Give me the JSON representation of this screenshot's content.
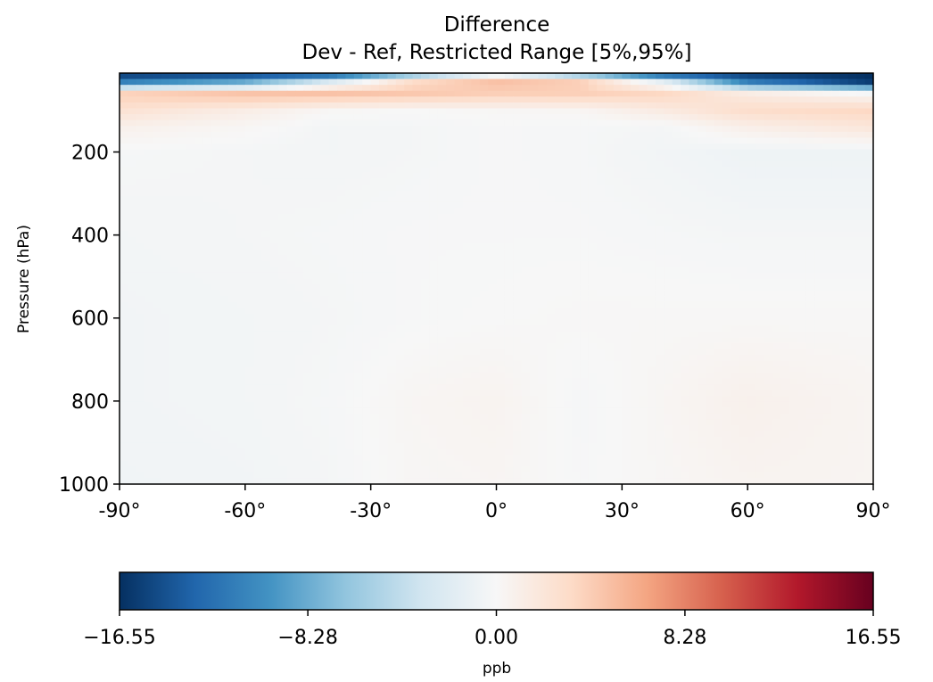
{
  "chart_data": {
    "type": "heatmap",
    "title": "Difference",
    "subtitle": "Dev - Ref, Restricted Range [5%,95%]",
    "xlabel": "",
    "ylabel": "Pressure (hPa)",
    "xlim": [
      -90,
      90
    ],
    "ylim": [
      1000,
      10
    ],
    "y_inverted": true,
    "x_ticks": [
      -90,
      -60,
      -30,
      0,
      30,
      60,
      90
    ],
    "x_tick_labels": [
      "-90°",
      "-60°",
      "-30°",
      "0°",
      "30°",
      "60°",
      "90°"
    ],
    "y_ticks": [
      200,
      400,
      600,
      800,
      1000
    ],
    "y_tick_labels": [
      "200",
      "400",
      "600",
      "800",
      "1000"
    ],
    "colorbar": {
      "label": "ppb",
      "min": -16.55,
      "max": 16.55,
      "ticks": [
        -16.55,
        -8.28,
        0.0,
        8.28,
        16.55
      ],
      "tick_labels": [
        "−16.55",
        "−8.28",
        "0.00",
        "8.28",
        "16.55"
      ],
      "colormap": "RdBu_r",
      "colors": [
        "#053061",
        "#2166ac",
        "#4393c3",
        "#92c5de",
        "#d1e5f0",
        "#f7f7f7",
        "#fddbc7",
        "#f4a582",
        "#d6604d",
        "#b2182b",
        "#67001f"
      ]
    },
    "lat_nodes": [
      -90,
      -60,
      -40,
      -20,
      0,
      20,
      40,
      60,
      90
    ],
    "levels": [
      {
        "p": 10,
        "values": [
          -16.55,
          -16.55,
          -16.55,
          -10,
          -3,
          -10,
          -16.55,
          -16.55,
          -16.55
        ]
      },
      {
        "p": 30,
        "values": [
          -12,
          -9,
          -3,
          3,
          5,
          4,
          -2,
          -12,
          -16.55
        ]
      },
      {
        "p": 60,
        "values": [
          4,
          5,
          5,
          4.5,
          4,
          4,
          3.5,
          1.5,
          0
        ]
      },
      {
        "p": 100,
        "values": [
          2.5,
          1.2,
          0.2,
          0,
          0.2,
          0.3,
          1.5,
          3,
          3.5
        ]
      },
      {
        "p": 140,
        "values": [
          0.8,
          0.2,
          -0.4,
          -0.3,
          -0.1,
          -0.2,
          -0.3,
          1,
          2
        ]
      },
      {
        "p": 200,
        "values": [
          -0.2,
          -0.3,
          -0.4,
          -0.3,
          -0.1,
          -0.2,
          -0.5,
          -0.8,
          -0.8
        ]
      },
      {
        "p": 400,
        "values": [
          -0.4,
          -0.3,
          -0.2,
          -0.1,
          -0.1,
          -0.1,
          -0.2,
          -0.3,
          -0.3
        ]
      },
      {
        "p": 600,
        "values": [
          -0.5,
          -0.4,
          -0.3,
          -0.1,
          0,
          0.1,
          0.1,
          0.1,
          0.1
        ]
      },
      {
        "p": 800,
        "values": [
          -0.5,
          -0.4,
          -0.2,
          0.3,
          0.5,
          -0.2,
          0.3,
          0.8,
          0.4
        ]
      },
      {
        "p": 1000,
        "values": [
          -0.6,
          -0.5,
          -0.3,
          0.2,
          0.3,
          -0.1,
          0.2,
          0.5,
          0.4
        ]
      }
    ]
  }
}
